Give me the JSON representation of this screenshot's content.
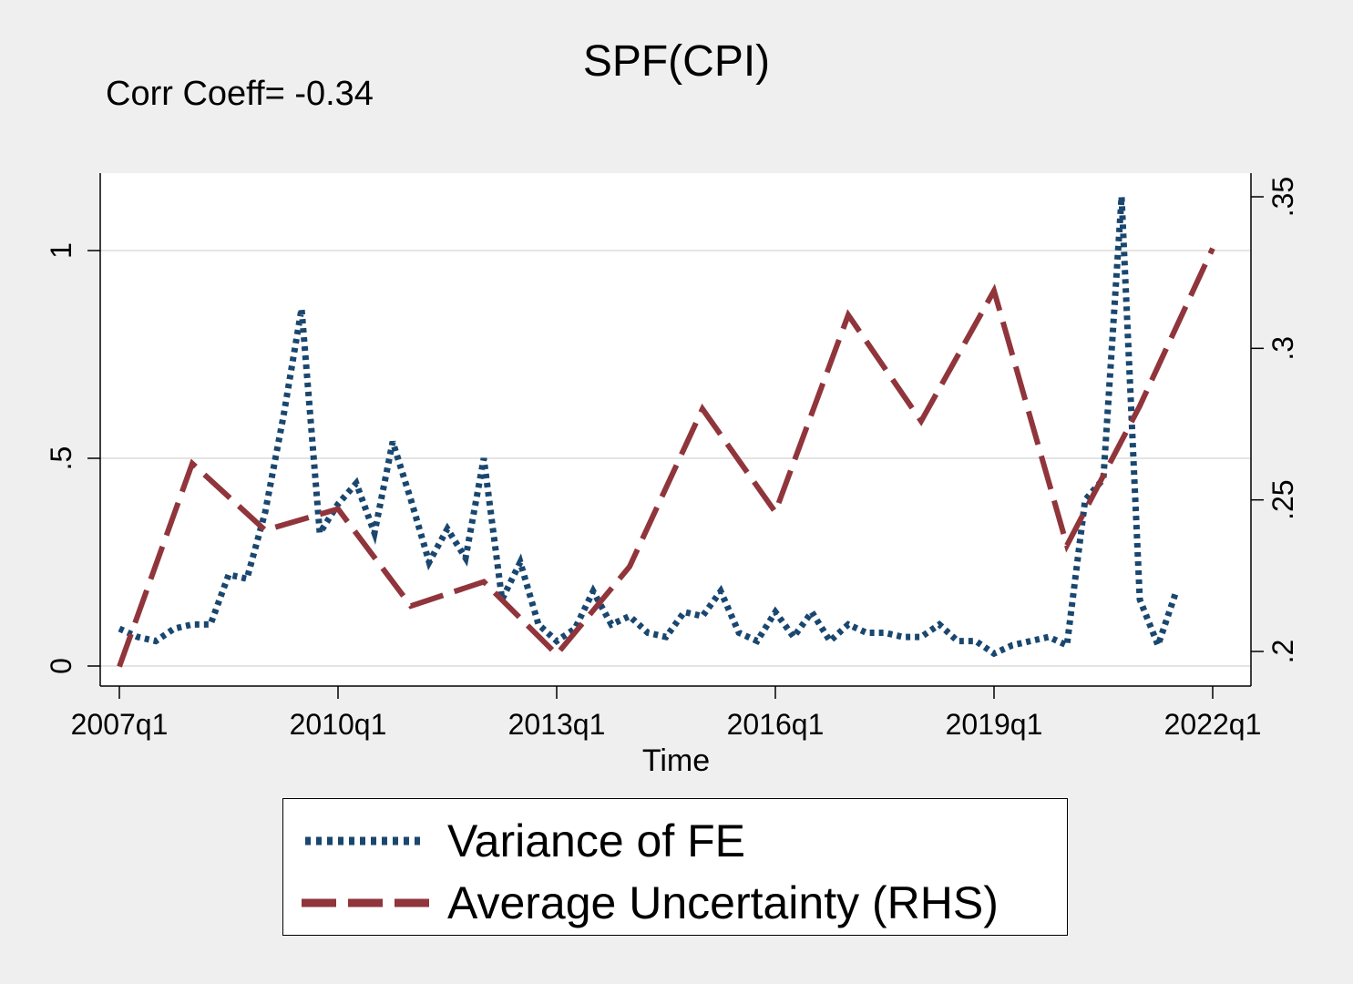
{
  "chart_data": {
    "type": "line",
    "title": "SPF(CPI)",
    "annotation": "Corr Coeff= -0.34",
    "xlabel": "Time",
    "x_ticks": [
      "2007q1",
      "2010q1",
      "2013q1",
      "2016q1",
      "2019q1",
      "2022q1"
    ],
    "x_range": [
      "2007q1",
      "2022q1"
    ],
    "y_left": {
      "ticks": [
        "0",
        ".5",
        "1"
      ],
      "tick_values": [
        0,
        0.5,
        1
      ],
      "range": [
        -0.05,
        1.18
      ]
    },
    "y_right": {
      "ticks": [
        ".2",
        ".25",
        ".3",
        ".35"
      ],
      "tick_values": [
        0.2,
        0.25,
        0.3,
        0.35
      ],
      "range": [
        0.19,
        0.355
      ]
    },
    "grid": true,
    "legend_position": "bottom",
    "series": [
      {
        "name": "Variance of FE",
        "axis": "left",
        "color": "#1a476f",
        "style": "dotted",
        "points": [
          [
            "2007q1",
            0.09
          ],
          [
            "2007q2",
            0.07
          ],
          [
            "2007q3",
            0.06
          ],
          [
            "2007q4",
            0.09
          ],
          [
            "2008q1",
            0.1
          ],
          [
            "2008q2",
            0.1
          ],
          [
            "2008q3",
            0.22
          ],
          [
            "2008q4",
            0.21
          ],
          [
            "2009q1",
            0.37
          ],
          [
            "2009q2",
            0.6
          ],
          [
            "2009q3",
            0.86
          ],
          [
            "2009q4",
            0.32
          ],
          [
            "2010q1",
            0.39
          ],
          [
            "2010q2",
            0.44
          ],
          [
            "2010q3",
            0.32
          ],
          [
            "2010q4",
            0.54
          ],
          [
            "2011q1",
            0.4
          ],
          [
            "2011q2",
            0.25
          ],
          [
            "2011q3",
            0.33
          ],
          [
            "2011q4",
            0.26
          ],
          [
            "2012q1",
            0.5
          ],
          [
            "2012q2",
            0.16
          ],
          [
            "2012q3",
            0.25
          ],
          [
            "2012q4",
            0.1
          ],
          [
            "2013q1",
            0.06
          ],
          [
            "2013q2",
            0.09
          ],
          [
            "2013q3",
            0.18
          ],
          [
            "2013q4",
            0.1
          ],
          [
            "2014q1",
            0.12
          ],
          [
            "2014q2",
            0.08
          ],
          [
            "2014q3",
            0.07
          ],
          [
            "2014q4",
            0.13
          ],
          [
            "2015q1",
            0.12
          ],
          [
            "2015q2",
            0.18
          ],
          [
            "2015q3",
            0.08
          ],
          [
            "2015q4",
            0.06
          ],
          [
            "2016q1",
            0.13
          ],
          [
            "2016q2",
            0.07
          ],
          [
            "2016q3",
            0.13
          ],
          [
            "2016q4",
            0.06
          ],
          [
            "2017q1",
            0.1
          ],
          [
            "2017q2",
            0.08
          ],
          [
            "2017q3",
            0.08
          ],
          [
            "2017q4",
            0.07
          ],
          [
            "2018q1",
            0.07
          ],
          [
            "2018q2",
            0.1
          ],
          [
            "2018q3",
            0.06
          ],
          [
            "2018q4",
            0.06
          ],
          [
            "2019q1",
            0.03
          ],
          [
            "2019q2",
            0.05
          ],
          [
            "2019q3",
            0.06
          ],
          [
            "2019q4",
            0.07
          ],
          [
            "2020q1",
            0.05
          ],
          [
            "2020q2",
            0.4
          ],
          [
            "2020q3",
            0.45
          ],
          [
            "2020q4",
            1.13
          ],
          [
            "2021q1",
            0.16
          ],
          [
            "2021q2",
            0.05
          ],
          [
            "2021q3",
            0.18
          ]
        ]
      },
      {
        "name": "Average Uncertainty (RHS)",
        "axis": "right",
        "color": "#90353b",
        "style": "dashed",
        "points": [
          [
            "2007q1",
            0.195
          ],
          [
            "2008q1",
            0.262
          ],
          [
            "2009q1",
            0.24
          ],
          [
            "2010q1",
            0.247
          ],
          [
            "2011q1",
            0.215
          ],
          [
            "2012q1",
            0.223
          ],
          [
            "2013q1",
            0.199
          ],
          [
            "2014q1",
            0.228
          ],
          [
            "2015q1",
            0.28
          ],
          [
            "2016q1",
            0.246
          ],
          [
            "2017q1",
            0.311
          ],
          [
            "2018q1",
            0.276
          ],
          [
            "2019q1",
            0.319
          ],
          [
            "2020q1",
            0.235
          ],
          [
            "2021q1",
            0.281
          ],
          [
            "2022q1",
            0.333
          ]
        ]
      }
    ]
  }
}
